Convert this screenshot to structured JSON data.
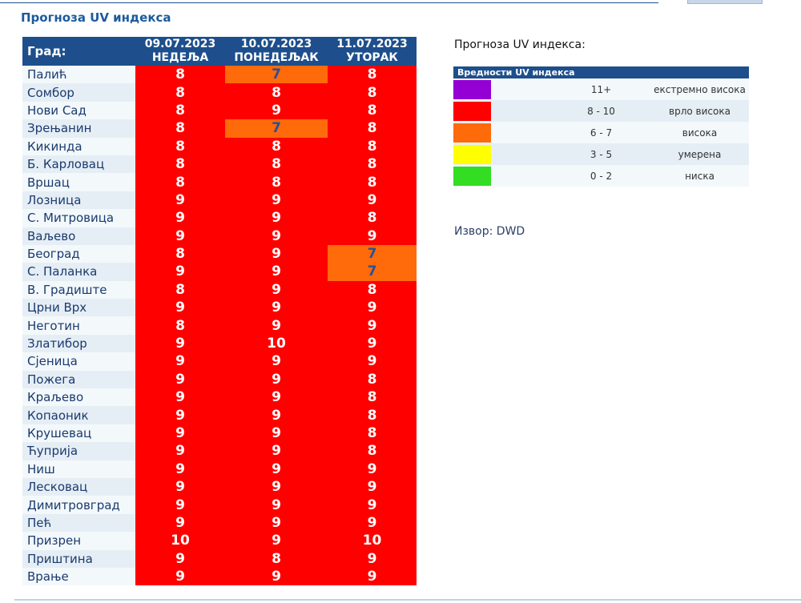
{
  "page": {
    "title": "Прогноза UV индекса"
  },
  "table": {
    "city_header": "Град:",
    "days": [
      {
        "date": "09.07.2023",
        "weekday": "НЕДЕЉА"
      },
      {
        "date": "10.07.2023",
        "weekday": "ПОНЕДЕЉАК"
      },
      {
        "date": "11.07.2023",
        "weekday": "УТОРАК"
      }
    ],
    "rows": [
      {
        "city": "Палић",
        "values": [
          8,
          7,
          8
        ]
      },
      {
        "city": "Сомбор",
        "values": [
          8,
          8,
          8
        ]
      },
      {
        "city": "Нови Сад",
        "values": [
          8,
          9,
          8
        ]
      },
      {
        "city": "Зрењанин",
        "values": [
          8,
          7,
          8
        ]
      },
      {
        "city": "Кикинда",
        "values": [
          8,
          8,
          8
        ]
      },
      {
        "city": "Б. Карловац",
        "values": [
          8,
          8,
          8
        ]
      },
      {
        "city": "Вршац",
        "values": [
          8,
          8,
          8
        ]
      },
      {
        "city": "Лозница",
        "values": [
          9,
          9,
          9
        ]
      },
      {
        "city": "С. Митровица",
        "values": [
          9,
          9,
          8
        ]
      },
      {
        "city": "Ваљево",
        "values": [
          9,
          9,
          9
        ]
      },
      {
        "city": "Београд",
        "values": [
          8,
          9,
          7
        ]
      },
      {
        "city": "С. Паланка",
        "values": [
          9,
          9,
          7
        ]
      },
      {
        "city": "В. Градиште",
        "values": [
          8,
          9,
          8
        ]
      },
      {
        "city": "Црни Врх",
        "values": [
          9,
          9,
          9
        ]
      },
      {
        "city": "Неготин",
        "values": [
          8,
          9,
          9
        ]
      },
      {
        "city": "Златибор",
        "values": [
          9,
          10,
          9
        ]
      },
      {
        "city": "Сјеница",
        "values": [
          9,
          9,
          9
        ]
      },
      {
        "city": "Пожега",
        "values": [
          9,
          9,
          8
        ]
      },
      {
        "city": "Краљево",
        "values": [
          9,
          9,
          8
        ]
      },
      {
        "city": "Копаоник",
        "values": [
          9,
          9,
          8
        ]
      },
      {
        "city": "Крушевац",
        "values": [
          9,
          9,
          8
        ]
      },
      {
        "city": "Ћуприја",
        "values": [
          9,
          9,
          8
        ]
      },
      {
        "city": "Ниш",
        "values": [
          9,
          9,
          9
        ]
      },
      {
        "city": "Лесковац",
        "values": [
          9,
          9,
          9
        ]
      },
      {
        "city": "Димитровград",
        "values": [
          9,
          9,
          9
        ]
      },
      {
        "city": "Пећ",
        "values": [
          9,
          9,
          9
        ]
      },
      {
        "city": "Призрен",
        "values": [
          10,
          9,
          10
        ]
      },
      {
        "city": "Приштина",
        "values": [
          9,
          8,
          9
        ]
      },
      {
        "city": "Врање",
        "values": [
          9,
          9,
          9
        ]
      }
    ]
  },
  "legend": {
    "title": "Прогноза UV индекса:",
    "header": "Вредности UV индекса",
    "items": [
      {
        "range": "11+",
        "label": "екстремно висока",
        "color": "#9400d3"
      },
      {
        "range": "8 - 10",
        "label": "врло висока",
        "color": "#ff0000"
      },
      {
        "range": "6 - 7",
        "label": "висока",
        "color": "#ff6a0a"
      },
      {
        "range": "3 - 5",
        "label": "умерена",
        "color": "#ffff00"
      },
      {
        "range": "0 - 2",
        "label": "ниска",
        "color": "#33dd22"
      }
    ]
  },
  "source": {
    "text": "Извор: DWD"
  },
  "colors": {
    "header_blue": "#1e4f8c",
    "title_blue": "#1c5a9c",
    "very_high_red": "#ff0000",
    "high_orange": "#ff6a0a"
  }
}
